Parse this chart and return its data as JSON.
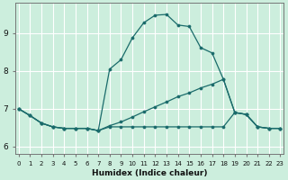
{
  "xlabel": "Humidex (Indice chaleur)",
  "bg_color": "#cceedd",
  "grid_color": "#ffffff",
  "line_color": "#1a6b6b",
  "x_ticks": [
    0,
    1,
    2,
    3,
    4,
    5,
    6,
    7,
    8,
    9,
    10,
    11,
    12,
    13,
    14,
    15,
    16,
    17,
    18,
    19,
    20,
    21,
    22,
    23
  ],
  "y_ticks": [
    6,
    7,
    8,
    9
  ],
  "ylim": [
    5.8,
    9.8
  ],
  "xlim": [
    -0.3,
    23.3
  ],
  "series": [
    {
      "x": [
        0,
        1,
        2,
        3,
        4,
        5,
        6,
        7,
        8,
        9,
        10,
        11,
        12,
        13,
        14,
        15,
        16,
        17,
        18,
        19,
        20,
        21,
        22,
        23
      ],
      "y": [
        7.0,
        6.82,
        6.62,
        6.52,
        6.48,
        6.48,
        6.48,
        6.42,
        8.05,
        8.3,
        8.88,
        9.28,
        9.48,
        9.5,
        9.22,
        9.18,
        8.62,
        8.48,
        7.78,
        6.9,
        6.85,
        6.52,
        6.48,
        6.48
      ]
    },
    {
      "x": [
        0,
        1,
        2,
        3,
        4,
        5,
        6,
        7,
        8,
        9,
        10,
        11,
        12,
        13,
        14,
        15,
        16,
        17,
        18,
        19,
        20,
        21,
        22,
        23
      ],
      "y": [
        7.0,
        6.82,
        6.62,
        6.52,
        6.48,
        6.48,
        6.48,
        6.42,
        6.55,
        6.65,
        6.78,
        6.92,
        7.05,
        7.18,
        7.32,
        7.42,
        7.55,
        7.65,
        7.78,
        6.9,
        6.85,
        6.52,
        6.48,
        6.48
      ]
    },
    {
      "x": [
        0,
        1,
        2,
        3,
        4,
        5,
        6,
        7,
        8,
        9,
        10,
        11,
        12,
        13,
        14,
        15,
        16,
        17,
        18,
        19,
        20,
        21,
        22,
        23
      ],
      "y": [
        7.0,
        6.82,
        6.62,
        6.52,
        6.48,
        6.48,
        6.48,
        6.42,
        6.52,
        6.52,
        6.52,
        6.52,
        6.52,
        6.52,
        6.52,
        6.52,
        6.52,
        6.52,
        6.52,
        6.9,
        6.85,
        6.52,
        6.48,
        6.48
      ]
    }
  ]
}
